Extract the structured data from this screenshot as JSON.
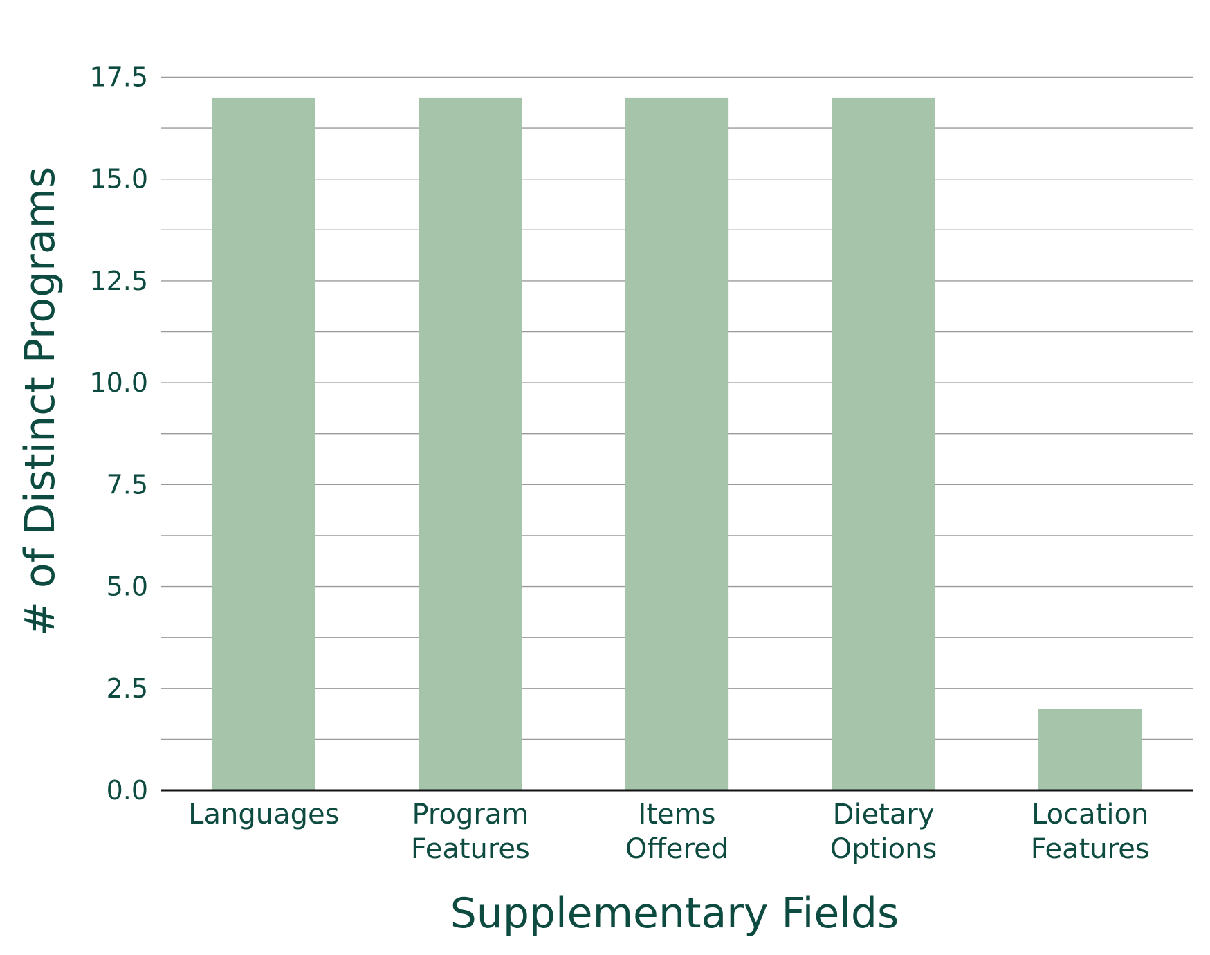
{
  "chart_data": {
    "type": "bar",
    "categories": [
      [
        "Languages"
      ],
      [
        "Program",
        "Features"
      ],
      [
        "Items",
        "Offered"
      ],
      [
        "Dietary",
        "Options"
      ],
      [
        "Location",
        "Features"
      ]
    ],
    "values": [
      17,
      17,
      17,
      17,
      2
    ],
    "xlabel": "Supplementary Fields",
    "ylabel": "# of Distinct Programs",
    "ylim": [
      0,
      18
    ],
    "yticks": [
      0.0,
      2.5,
      5.0,
      7.5,
      10.0,
      12.5,
      15.0,
      17.5
    ],
    "ytick_labels": [
      "0.0",
      "2.5",
      "5.0",
      "7.5",
      "10.0",
      "12.5",
      "15.0",
      "17.5"
    ],
    "grid": true,
    "colors": {
      "bar": "#a5c4aa",
      "text": "#0d4a3f",
      "grid": "#9a9a9a",
      "axis": "#111111"
    }
  }
}
